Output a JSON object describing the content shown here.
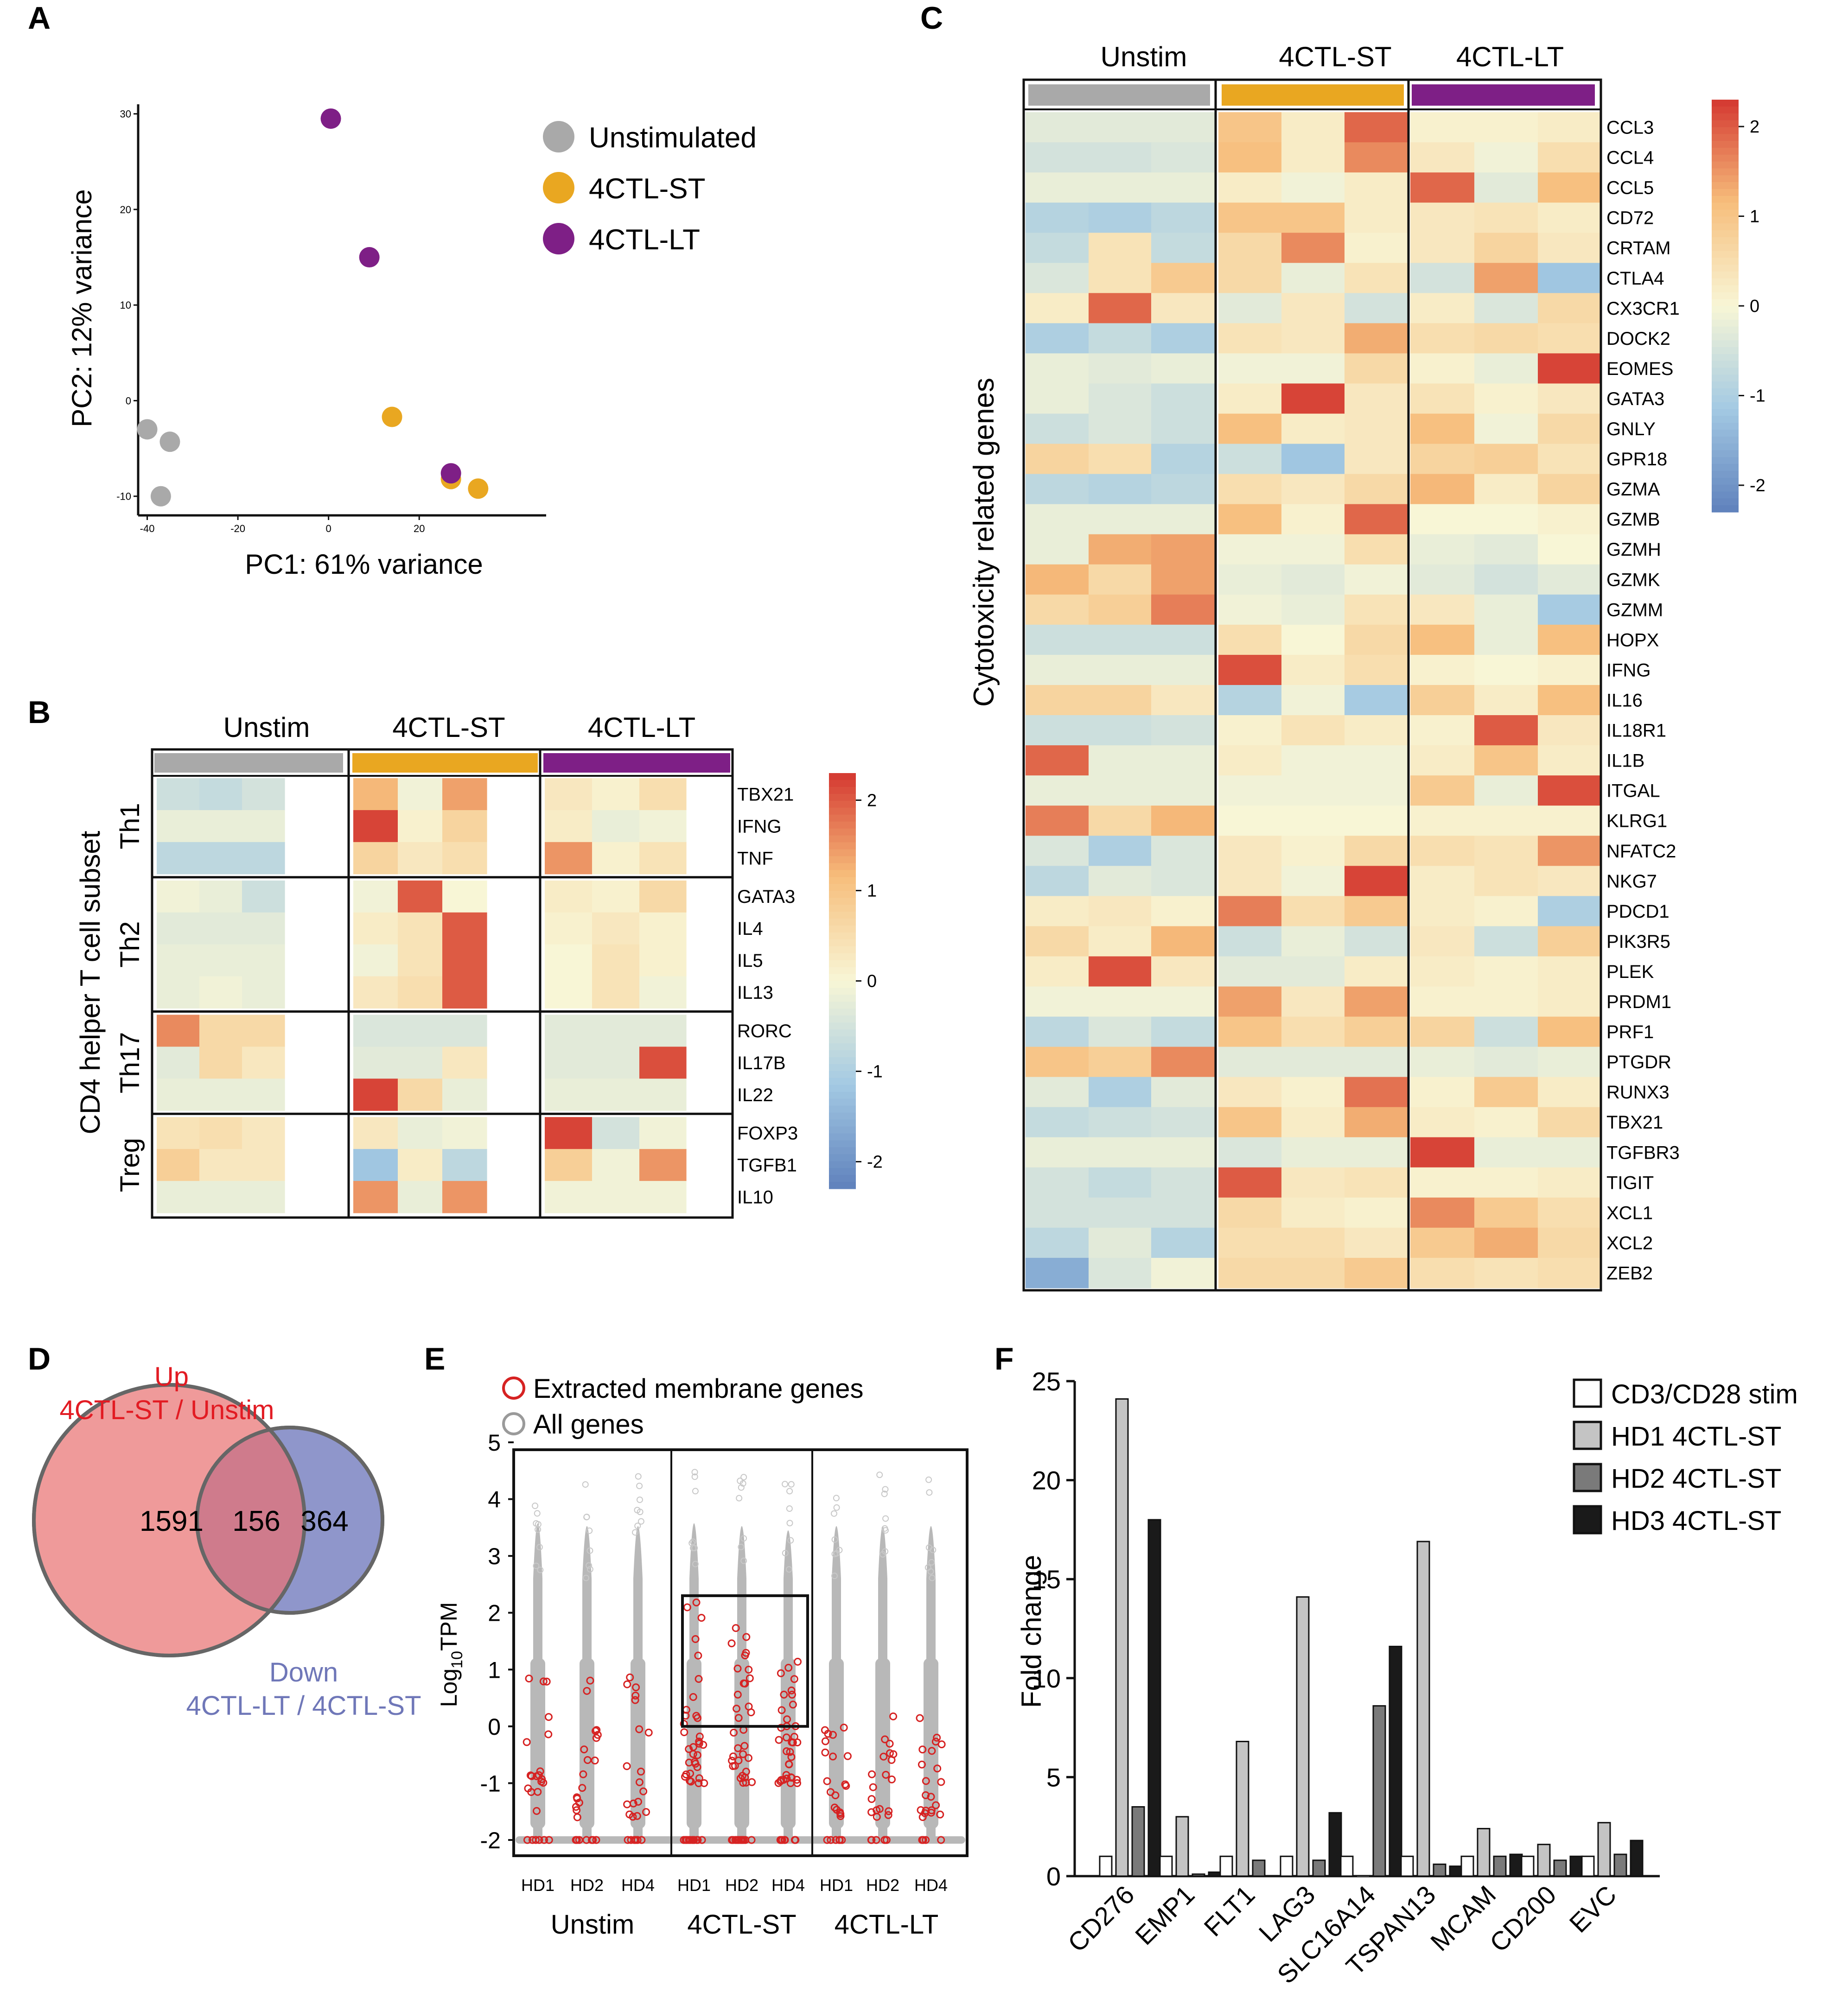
{
  "colors": {
    "unstim": "#a9a9a9",
    "st": "#e9a721",
    "lt": "#7e1f86",
    "venn_up": "#ef9a9a",
    "venn_down": "#8f96cb",
    "venn_overlap": "#cf7b8c",
    "up_text": "#e21b23",
    "down_text": "#6f77b8",
    "membrane": "#d62222",
    "allgenes": "#b8b8b8"
  },
  "panel_labels": {
    "a": "A",
    "b": "B",
    "c": "C",
    "d": "D",
    "e": "E",
    "f": "F"
  },
  "groups": [
    "Unstim",
    "4CTL-ST",
    "4CTL-LT"
  ],
  "colorbar": {
    "ticks": [
      "2",
      "1",
      "0",
      "-1",
      "-2"
    ]
  },
  "chart_data": [
    {
      "type": "scatter",
      "panel": "A",
      "xlabel": "PC1: 61% variance",
      "ylabel": "PC2: 12% variance",
      "xlim": [
        -42,
        48
      ],
      "ylim": [
        -12,
        31
      ],
      "xticks": [
        "-40",
        "-20",
        "0",
        "20"
      ],
      "xtick_values": [
        -40,
        -20,
        0,
        20
      ],
      "yticks": [
        "-10",
        "0",
        "10",
        "20",
        "30"
      ],
      "ytick_values": [
        -10,
        0,
        10,
        20,
        30
      ],
      "legend": [
        {
          "name": "Unstimulated",
          "key": "unstim"
        },
        {
          "name": "4CTL-ST",
          "key": "st"
        },
        {
          "name": "4CTL-LT",
          "key": "lt"
        }
      ],
      "points": [
        {
          "group": "unstim",
          "x": -40,
          "y": -3
        },
        {
          "group": "unstim",
          "x": -35,
          "y": -4.3
        },
        {
          "group": "unstim",
          "x": -37,
          "y": -10
        },
        {
          "group": "lt",
          "x": 0.5,
          "y": 29.5
        },
        {
          "group": "lt",
          "x": 9,
          "y": 15
        },
        {
          "group": "st",
          "x": 14,
          "y": -1.7
        },
        {
          "group": "st",
          "x": 27,
          "y": -8.2
        },
        {
          "group": "lt",
          "x": 27,
          "y": -7.6
        },
        {
          "group": "st",
          "x": 33,
          "y": -9.2
        }
      ]
    },
    {
      "type": "heatmap",
      "panel": "B",
      "ylabel": "CD4 helper T cell subset",
      "subsets": [
        {
          "name": "Th1",
          "genes": [
            "TBX21",
            "IFNG",
            "TNF"
          ]
        },
        {
          "name": "Th2",
          "genes": [
            "GATA3",
            "IL4",
            "IL5",
            "IL13"
          ]
        },
        {
          "name": "Th17",
          "genes": [
            "RORC",
            "IL17B",
            "IL22"
          ]
        },
        {
          "name": "Treg",
          "genes": [
            "FOXP3",
            "TGFB1",
            "IL10"
          ]
        }
      ],
      "columns": [
        "Unstim",
        "Unstim",
        "Unstim",
        "4CTL-ST",
        "4CTL-ST",
        "4CTL-ST",
        "4CTL-LT",
        "4CTL-LT",
        "4CTL-LT"
      ],
      "range": [
        -2.3,
        2.3
      ],
      "values": [
        [
          -0.6,
          -0.7,
          -0.5,
          1.2,
          -0.1,
          1.4,
          0.3,
          0.1,
          0.5
        ],
        [
          -0.2,
          -0.2,
          -0.2,
          2.2,
          0.1,
          0.7,
          0.2,
          -0.2,
          -0.1
        ],
        [
          -0.8,
          -0.8,
          -0.8,
          0.7,
          0.3,
          0.5,
          1.5,
          0.1,
          0.4
        ],
        [
          -0.1,
          -0.2,
          -0.6,
          -0.1,
          2.0,
          0.0,
          0.2,
          0.1,
          0.6
        ],
        [
          -0.3,
          -0.3,
          -0.3,
          0.2,
          0.4,
          2.0,
          0.1,
          0.3,
          0.1
        ],
        [
          -0.2,
          -0.2,
          -0.2,
          -0.1,
          0.4,
          2.0,
          0.0,
          0.4,
          0.1
        ],
        [
          -0.2,
          -0.1,
          -0.2,
          0.3,
          0.5,
          2.0,
          0.0,
          0.4,
          -0.1
        ],
        [
          1.6,
          0.6,
          0.6,
          -0.4,
          -0.4,
          -0.4,
          -0.3,
          -0.3,
          -0.3
        ],
        [
          -0.3,
          0.6,
          0.3,
          -0.3,
          -0.3,
          0.3,
          -0.3,
          -0.3,
          2.1
        ],
        [
          -0.2,
          -0.2,
          -0.2,
          2.2,
          0.6,
          -0.2,
          -0.2,
          -0.2,
          -0.2
        ],
        [
          0.4,
          0.5,
          0.3,
          0.3,
          -0.2,
          -0.1,
          2.2,
          -0.5,
          -0.1
        ],
        [
          0.8,
          0.3,
          0.3,
          -1.2,
          0.2,
          -0.8,
          0.8,
          -0.1,
          1.5
        ],
        [
          -0.2,
          -0.2,
          -0.2,
          1.5,
          -0.2,
          1.5,
          -0.1,
          -0.1,
          -0.1
        ]
      ]
    },
    {
      "type": "heatmap",
      "panel": "C",
      "ylabel": "Cytotoxicity related genes",
      "genes": [
        "CCL3",
        "CCL4",
        "CCL5",
        "CD72",
        "CRTAM",
        "CTLA4",
        "CX3CR1",
        "DOCK2",
        "EOMES",
        "GATA3",
        "GNLY",
        "GPR18",
        "GZMA",
        "GZMB",
        "GZMH",
        "GZMK",
        "GZMM",
        "HOPX",
        "IFNG",
        "IL16",
        "IL18R1",
        "IL1B",
        "ITGAL",
        "KLRG1",
        "NFATC2",
        "NKG7",
        "PDCD1",
        "PIK3R5",
        "PLEK",
        "PRDM1",
        "PRF1",
        "PTGDR",
        "RUNX3",
        "TBX21",
        "TGFBR3",
        "TIGIT",
        "XCL1",
        "XCL2",
        "ZEB2"
      ],
      "columns": [
        "Unstim",
        "Unstim",
        "Unstim",
        "4CTL-ST",
        "4CTL-ST",
        "4CTL-ST",
        "4CTL-LT",
        "4CTL-LT",
        "4CTL-LT"
      ],
      "range": [
        -2.3,
        2.3
      ],
      "values": [
        [
          -0.3,
          -0.3,
          -0.3,
          1.0,
          0.2,
          1.9,
          0.1,
          0.1,
          0.2
        ],
        [
          -0.5,
          -0.5,
          -0.4,
          1.1,
          0.2,
          1.6,
          0.3,
          -0.1,
          0.5
        ],
        [
          -0.2,
          -0.2,
          -0.2,
          0.2,
          -0.1,
          0.2,
          1.9,
          -0.3,
          1.1
        ],
        [
          -0.9,
          -1.0,
          -0.8,
          1.0,
          1.0,
          0.2,
          0.3,
          0.4,
          0.2
        ],
        [
          -0.7,
          0.4,
          -0.7,
          0.6,
          1.6,
          0.1,
          0.3,
          0.7,
          0.3
        ],
        [
          -0.4,
          0.4,
          0.9,
          0.6,
          -0.2,
          0.4,
          -0.5,
          1.4,
          -1.2
        ],
        [
          0.2,
          1.9,
          0.3,
          -0.3,
          0.3,
          -0.5,
          0.2,
          -0.4,
          0.6
        ],
        [
          -1.0,
          -0.7,
          -1.0,
          0.4,
          0.3,
          1.3,
          0.5,
          0.6,
          0.5
        ],
        [
          -0.2,
          -0.3,
          -0.2,
          -0.1,
          -0.1,
          0.6,
          0.1,
          -0.2,
          2.2
        ],
        [
          -0.2,
          -0.4,
          -0.6,
          0.2,
          2.2,
          0.3,
          0.4,
          0.1,
          0.3
        ],
        [
          -0.6,
          -0.4,
          -0.6,
          1.1,
          0.2,
          0.3,
          1.1,
          -0.1,
          0.6
        ],
        [
          0.7,
          0.5,
          -0.9,
          -0.6,
          -1.2,
          0.3,
          0.7,
          0.8,
          0.4
        ],
        [
          -0.8,
          -0.9,
          -0.8,
          0.5,
          0.3,
          0.6,
          1.2,
          0.2,
          0.7
        ],
        [
          -0.2,
          -0.2,
          -0.2,
          1.1,
          0.1,
          1.9,
          0.0,
          0.0,
          0.1
        ],
        [
          -0.2,
          1.3,
          1.4,
          -0.1,
          -0.1,
          0.5,
          -0.2,
          -0.3,
          0.0
        ],
        [
          1.2,
          0.6,
          1.4,
          -0.2,
          -0.3,
          -0.1,
          -0.3,
          -0.5,
          -0.3
        ],
        [
          0.6,
          0.8,
          1.7,
          -0.1,
          -0.2,
          0.4,
          0.3,
          -0.2,
          -1.1
        ],
        [
          -0.6,
          -0.6,
          -0.6,
          0.5,
          0.0,
          0.6,
          1.1,
          -0.2,
          1.1
        ],
        [
          -0.2,
          -0.2,
          -0.2,
          2.1,
          0.2,
          0.5,
          0.1,
          0.0,
          0.1
        ],
        [
          0.7,
          0.7,
          0.3,
          -0.9,
          -0.1,
          -1.1,
          0.8,
          0.2,
          1.1
        ],
        [
          -0.6,
          -0.6,
          -0.5,
          0.1,
          0.4,
          0.2,
          0.1,
          2.0,
          0.3
        ],
        [
          1.9,
          -0.2,
          -0.2,
          0.2,
          -0.1,
          -0.1,
          0.2,
          1.0,
          0.2
        ],
        [
          -0.2,
          -0.2,
          -0.2,
          -0.1,
          -0.1,
          -0.1,
          0.9,
          -0.2,
          2.1
        ],
        [
          1.7,
          0.6,
          1.2,
          0.0,
          0.0,
          0.0,
          0.1,
          0.1,
          0.1
        ],
        [
          -0.4,
          -1.0,
          -0.4,
          0.3,
          0.1,
          0.6,
          0.5,
          0.4,
          1.5
        ],
        [
          -0.8,
          -0.3,
          -0.4,
          0.3,
          -0.1,
          2.2,
          0.2,
          0.4,
          0.3
        ],
        [
          0.2,
          0.3,
          0.1,
          1.7,
          0.5,
          0.9,
          0.2,
          0.1,
          -1.0
        ],
        [
          0.6,
          0.2,
          1.2,
          -0.6,
          -0.2,
          -0.5,
          0.3,
          -0.6,
          0.8
        ],
        [
          0.2,
          2.1,
          0.3,
          -0.3,
          -0.3,
          0.2,
          0.2,
          0.1,
          0.2
        ],
        [
          -0.1,
          -0.1,
          -0.1,
          1.4,
          0.3,
          1.4,
          0.1,
          0.1,
          0.2
        ],
        [
          -0.8,
          -0.4,
          -0.7,
          1.0,
          0.5,
          0.8,
          0.7,
          -0.6,
          1.1
        ],
        [
          1.0,
          0.8,
          1.6,
          -0.3,
          -0.3,
          -0.3,
          -0.2,
          -0.3,
          -0.2
        ],
        [
          -0.3,
          -1.0,
          -0.3,
          0.3,
          0.1,
          1.8,
          0.1,
          0.9,
          0.2
        ],
        [
          -0.7,
          -0.6,
          -0.5,
          1.0,
          0.2,
          1.3,
          0.2,
          0.1,
          0.6
        ],
        [
          -0.2,
          -0.2,
          -0.2,
          -0.4,
          -0.2,
          -0.2,
          2.2,
          -0.2,
          -0.2
        ],
        [
          -0.5,
          -0.7,
          -0.5,
          2.0,
          0.3,
          0.4,
          0.1,
          0.1,
          0.2
        ],
        [
          -0.5,
          -0.5,
          -0.5,
          0.6,
          0.2,
          0.1,
          1.6,
          0.9,
          0.5
        ],
        [
          -0.8,
          -0.3,
          -0.9,
          0.5,
          0.5,
          0.3,
          0.9,
          1.3,
          0.6
        ],
        [
          -1.6,
          -0.4,
          -0.1,
          0.6,
          0.6,
          0.9,
          0.5,
          0.4,
          0.5
        ]
      ]
    },
    {
      "type": "venn",
      "panel": "D",
      "up_label_line1": "Up",
      "up_label_line2": "4CTL-ST / Unstim",
      "down_label_line1": "Down",
      "down_label_line2": "4CTL-LT / 4CTL-ST",
      "only_up": "1591",
      "overlap": "156",
      "only_down": "364"
    },
    {
      "type": "scatter",
      "panel": "E",
      "legend_membrane": "Extracted membrane genes",
      "legend_all": "All genes",
      "ylabel_main": "Log",
      "ylabel_sub": "10",
      "ylabel_rest": "TPM",
      "ylim": [
        -2.2,
        5.2
      ],
      "yticks": [
        "5",
        "4",
        "3",
        "2",
        "1",
        "0",
        "-1",
        "-2"
      ],
      "ytick_values": [
        5,
        4,
        3,
        2,
        1,
        0,
        -1,
        -2
      ],
      "donors": [
        "HD1",
        "HD2",
        "HD4",
        "HD1",
        "HD2",
        "HD4",
        "HD1",
        "HD2",
        "HD4"
      ],
      "group_labels": [
        "Unstim",
        "4CTL-ST",
        "4CTL-LT"
      ],
      "column_max": [
        4.55,
        4.45,
        4.45,
        4.55,
        4.45,
        4.3,
        4.45,
        4.45,
        4.45
      ],
      "box": {
        "ymin": 0,
        "ymax": 2.3
      },
      "membrane_spread": [
        {
          "low": -2,
          "high": 1.1
        },
        {
          "low": -2,
          "high": 1.1
        },
        {
          "low": -2,
          "high": 0.9
        },
        {
          "low": -2,
          "high": 2.3
        },
        {
          "low": -2,
          "high": 1.8
        },
        {
          "low": -2,
          "high": 1.4
        },
        {
          "low": -2,
          "high": 0.2
        },
        {
          "low": -2,
          "high": 0.2
        },
        {
          "low": -2,
          "high": 0.2
        }
      ]
    },
    {
      "type": "bar",
      "panel": "F",
      "ylabel": "Fold change",
      "ylim": [
        0,
        25
      ],
      "yticks": [
        "0",
        "5",
        "10",
        "15",
        "20",
        "25"
      ],
      "ytick_values": [
        0,
        5,
        10,
        15,
        20,
        25
      ],
      "categories": [
        "CD276",
        "EMP1",
        "FLT1",
        "LAG3",
        "SLC16A14",
        "TSPAN13",
        "MCAM",
        "CD200",
        "EVC"
      ],
      "series": [
        {
          "name": "CD3/CD28 stim",
          "color": "#ffffff",
          "values": [
            1,
            1,
            1,
            1,
            1,
            1,
            1,
            1,
            1
          ]
        },
        {
          "name": "HD1 4CTL-ST",
          "color": "#c4c4c4",
          "values": [
            24.1,
            3,
            6.8,
            14.1,
            0,
            16.9,
            2.4,
            1.6,
            2.7
          ]
        },
        {
          "name": "HD2 4CTL-ST",
          "color": "#7a7a7a",
          "values": [
            3.5,
            0.1,
            0.8,
            0.8,
            8.6,
            0.6,
            1,
            0.8,
            1.1
          ]
        },
        {
          "name": "HD3 4CTL-ST",
          "color": "#1a1a1a",
          "values": [
            18,
            0.2,
            0,
            3.2,
            11.6,
            0.5,
            1.1,
            1,
            1.8
          ]
        }
      ]
    }
  ]
}
